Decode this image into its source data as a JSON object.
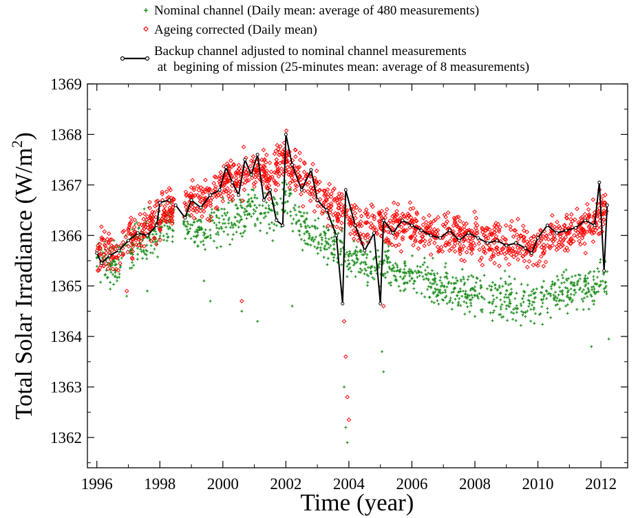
{
  "chart_data": {
    "type": "scatter",
    "title": "",
    "xlabel": "Time (year)",
    "ylabel": "Total Solar Irradiance (W/m",
    "ylabel_superscript": "2",
    "ylabel_close": ")",
    "xlim": [
      1995.7,
      2012.85
    ],
    "ylim": [
      1361.4,
      1369.0
    ],
    "xticks": [
      1996,
      1998,
      2000,
      2002,
      2004,
      2006,
      2008,
      2010,
      2012
    ],
    "xtick_labels": [
      "1996",
      "1998",
      "2000",
      "2002",
      "2004",
      "2006",
      "2008",
      "2010",
      "2012"
    ],
    "yticks": [
      1362,
      1363,
      1364,
      1365,
      1366,
      1367,
      1368,
      1369
    ],
    "ytick_labels": [
      "1362",
      "1363",
      "1364",
      "1365",
      "1366",
      "1367",
      "1368",
      "1369"
    ],
    "grid": false,
    "legend_position": "top",
    "legend": [
      "Nominal channel (Daily mean: average of 480 measurements)",
      "Ageing corrected  (Daily mean)",
      "Backup channel  adjusted to nominal channel measurements",
      " at  begining of mission (25-minutes mean: average of 8 measurements)"
    ],
    "colors": {
      "nominal": "#1a8c1a",
      "ageing": "#ff0000",
      "backup": "#000000"
    },
    "series": [
      {
        "name": "Nominal channel (Daily mean: average of 480 measurements)",
        "marker": "plus",
        "x": [
          1996.0,
          1996.5,
          1997.0,
          1997.5,
          1998.0,
          1998.3,
          1999.0,
          1999.5,
          2000.0,
          2000.5,
          2001.0,
          2001.5,
          2002.0,
          2002.5,
          2003.0,
          2003.5,
          2004.0,
          2004.5,
          2005.0,
          2005.5,
          2006.0,
          2006.5,
          2007.0,
          2007.5,
          2008.0,
          2008.5,
          2009.0,
          2009.5,
          2010.0,
          2010.5,
          2011.0,
          2011.5,
          2012.0,
          2012.2
        ],
        "y": [
          1365.55,
          1365.45,
          1365.75,
          1365.95,
          1366.1,
          1366.25,
          1366.25,
          1366.1,
          1366.3,
          1366.35,
          1366.6,
          1366.4,
          1366.8,
          1366.2,
          1366.0,
          1365.8,
          1365.55,
          1365.35,
          1365.45,
          1365.3,
          1365.2,
          1365.1,
          1365.0,
          1364.9,
          1364.85,
          1364.8,
          1364.75,
          1364.7,
          1364.65,
          1364.9,
          1364.9,
          1364.95,
          1365.2,
          1365.05
        ],
        "scatter": 0.35
      },
      {
        "name": "Ageing corrected  (Daily mean)",
        "marker": "diamond",
        "x": [
          1996.0,
          1996.5,
          1997.0,
          1997.5,
          1998.0,
          1998.3,
          1999.0,
          1999.5,
          2000.0,
          2000.5,
          2001.0,
          2001.5,
          2002.0,
          2002.5,
          2003.0,
          2003.5,
          2004.0,
          2004.5,
          2005.0,
          2005.5,
          2006.0,
          2006.5,
          2007.0,
          2007.5,
          2008.0,
          2008.5,
          2009.0,
          2009.5,
          2010.0,
          2010.5,
          2011.0,
          2011.5,
          2012.0,
          2012.2
        ],
        "y": [
          1365.6,
          1365.65,
          1365.9,
          1366.1,
          1366.35,
          1366.55,
          1366.6,
          1366.7,
          1367.0,
          1367.2,
          1367.3,
          1367.2,
          1367.6,
          1367.1,
          1366.9,
          1366.6,
          1366.4,
          1366.15,
          1366.25,
          1366.15,
          1366.15,
          1366.05,
          1366.0,
          1365.95,
          1365.95,
          1365.9,
          1365.85,
          1365.8,
          1365.75,
          1366.0,
          1366.05,
          1366.2,
          1366.4,
          1366.5
        ],
        "scatter": 0.35
      },
      {
        "name": "Backup channel  adjusted to nominal channel measurements at  begining of mission (25-minutes mean: average of 8 measurements)",
        "marker": "circle-line",
        "x": [
          1996.0,
          1996.15,
          1996.4,
          1996.7,
          1997.0,
          1997.3,
          1997.6,
          1997.9,
          1998.0,
          1998.3,
          1998.5,
          1998.8,
          1999.0,
          1999.3,
          1999.6,
          1999.9,
          2000.1,
          2000.3,
          2000.5,
          2000.7,
          2000.9,
          2001.1,
          2001.3,
          2001.5,
          2001.7,
          2001.9,
          2002.0,
          2002.2,
          2002.5,
          2002.8,
          2003.0,
          2003.3,
          2003.6,
          2003.8,
          2003.9,
          2004.2,
          2004.5,
          2004.8,
          2005.0,
          2005.1,
          2005.4,
          2005.7,
          2006.0,
          2006.3,
          2006.6,
          2006.9,
          2007.2,
          2007.5,
          2007.8,
          2008.1,
          2008.4,
          2008.7,
          2009.0,
          2009.3,
          2009.6,
          2009.8,
          2010.0,
          2010.3,
          2010.6,
          2010.9,
          2011.2,
          2011.5,
          2011.8,
          2011.95,
          2012.1,
          2012.2
        ],
        "y": [
          1365.65,
          1365.45,
          1365.6,
          1365.7,
          1365.9,
          1366.05,
          1366.0,
          1366.2,
          1366.65,
          1366.7,
          1366.6,
          1366.35,
          1366.7,
          1366.55,
          1366.8,
          1366.9,
          1367.35,
          1367.05,
          1366.8,
          1367.5,
          1367.2,
          1367.6,
          1366.7,
          1366.9,
          1366.3,
          1366.2,
          1368.0,
          1367.4,
          1366.9,
          1367.3,
          1366.7,
          1366.5,
          1366.0,
          1364.65,
          1366.9,
          1366.2,
          1365.7,
          1366.05,
          1364.65,
          1366.3,
          1366.05,
          1366.3,
          1366.2,
          1366.1,
          1366.0,
          1365.95,
          1366.1,
          1365.9,
          1366.05,
          1365.95,
          1365.85,
          1365.9,
          1365.8,
          1365.85,
          1365.75,
          1365.65,
          1365.95,
          1366.2,
          1366.05,
          1366.1,
          1366.15,
          1366.3,
          1366.2,
          1367.05,
          1365.3,
          1366.6
        ]
      }
    ],
    "outliers": {
      "nominal": [
        [
          1996.95,
          1364.8
        ],
        [
          1997.6,
          1364.9
        ],
        [
          1999.4,
          1365.1
        ],
        [
          1999.6,
          1364.7
        ],
        [
          2000.6,
          1364.5
        ],
        [
          2001.1,
          1364.3
        ],
        [
          2002.2,
          1364.6
        ],
        [
          2003.85,
          1363.0
        ],
        [
          2003.9,
          1362.2
        ],
        [
          2003.95,
          1361.9
        ],
        [
          2005.05,
          1363.7
        ],
        [
          2005.1,
          1363.3
        ],
        [
          2011.7,
          1363.8
        ],
        [
          2012.25,
          1363.95
        ]
      ],
      "ageing": [
        [
          1996.95,
          1364.9
        ],
        [
          2000.6,
          1364.7
        ],
        [
          2003.85,
          1364.3
        ],
        [
          2003.9,
          1363.6
        ],
        [
          2003.95,
          1362.8
        ],
        [
          2004.0,
          1362.35
        ],
        [
          2005.1,
          1364.6
        ]
      ]
    }
  }
}
